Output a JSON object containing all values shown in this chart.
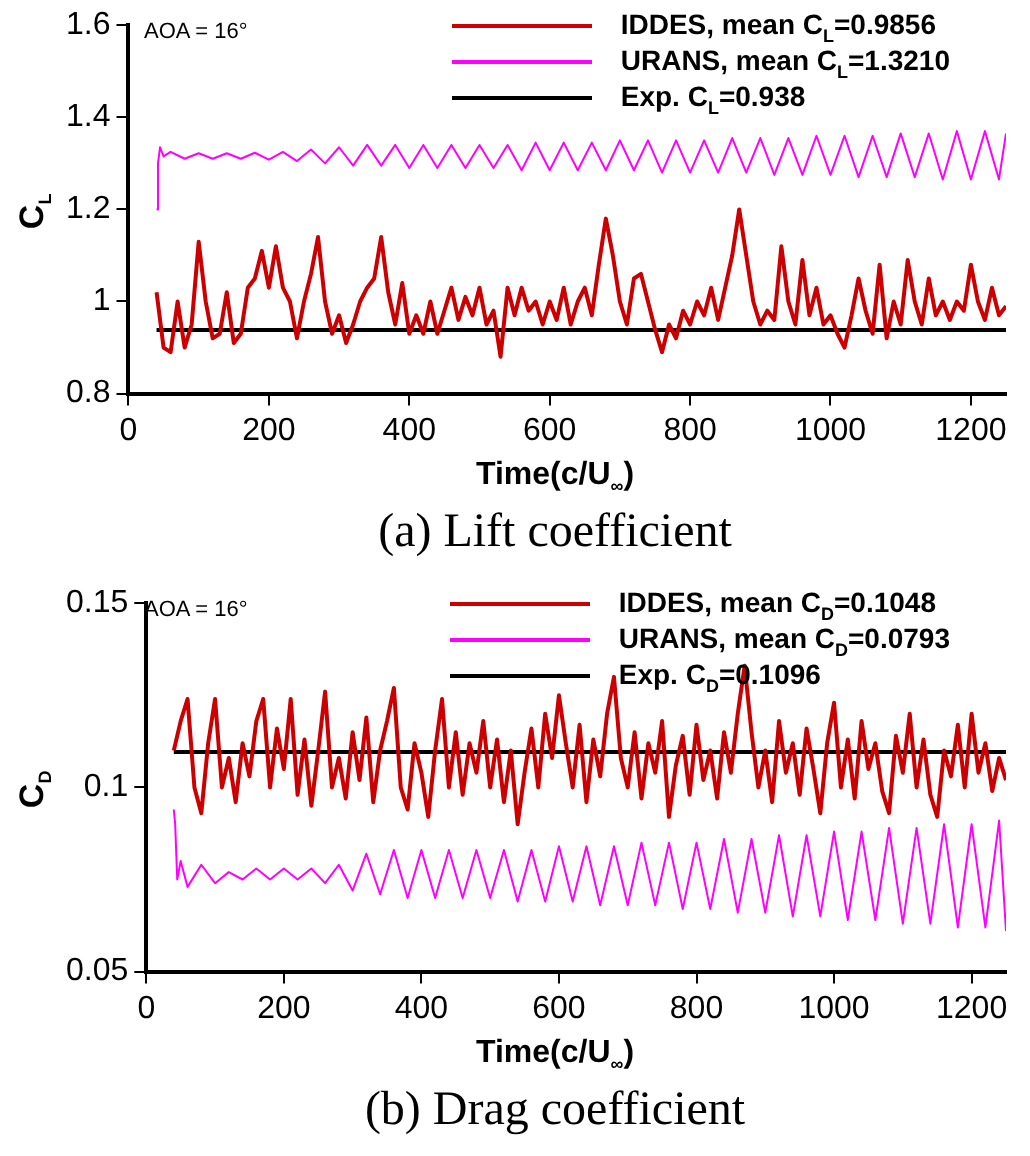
{
  "chart_data": [
    {
      "type": "line",
      "title": "(a) Lift coefficient",
      "xlabel": "Time(c/U$_{∞}$)",
      "ylabel": "C$_{L}$",
      "annotations": [
        "AOA = 16°"
      ],
      "xlim": [
        0,
        1250
      ],
      "xticks": [
        0,
        200,
        400,
        600,
        800,
        1000,
        1200
      ],
      "ylim": [
        0.8,
        1.6
      ],
      "yticks": [
        0.8,
        1,
        1.2,
        1.4,
        1.6
      ],
      "grid": false,
      "legend": "top right",
      "marker": "none",
      "line_style": "solid",
      "series": [
        {
          "name": "IDDES, mean C$_{L}$=0.9856",
          "color": "#cc0000",
          "x": [
            40,
            50,
            60,
            70,
            80,
            90,
            100,
            110,
            120,
            130,
            140,
            150,
            160,
            170,
            180,
            190,
            200,
            210,
            220,
            230,
            240,
            250,
            260,
            270,
            280,
            290,
            300,
            310,
            320,
            330,
            340,
            350,
            360,
            370,
            380,
            390,
            400,
            410,
            420,
            430,
            440,
            450,
            460,
            470,
            480,
            490,
            500,
            510,
            520,
            530,
            540,
            550,
            560,
            570,
            580,
            590,
            600,
            610,
            620,
            630,
            640,
            650,
            660,
            670,
            680,
            690,
            700,
            710,
            720,
            730,
            740,
            750,
            760,
            770,
            780,
            790,
            800,
            810,
            820,
            830,
            840,
            850,
            860,
            870,
            880,
            890,
            900,
            910,
            920,
            930,
            940,
            950,
            960,
            970,
            980,
            990,
            1000,
            1010,
            1020,
            1030,
            1040,
            1050,
            1060,
            1070,
            1080,
            1090,
            1100,
            1110,
            1120,
            1130,
            1140,
            1150,
            1160,
            1170,
            1180,
            1190,
            1200,
            1210,
            1220,
            1230,
            1240,
            1250
          ],
          "values": [
            1.02,
            0.9,
            0.89,
            1.0,
            0.9,
            0.95,
            1.13,
            1.0,
            0.92,
            0.93,
            1.02,
            0.91,
            0.93,
            1.03,
            1.05,
            1.11,
            1.03,
            1.12,
            1.03,
            1.0,
            0.92,
            1.0,
            1.06,
            1.14,
            1.0,
            0.93,
            0.97,
            0.91,
            0.95,
            1.0,
            1.03,
            1.05,
            1.14,
            1.02,
            0.95,
            1.04,
            0.93,
            0.97,
            0.93,
            1.0,
            0.93,
            0.98,
            1.03,
            0.96,
            1.01,
            0.97,
            1.03,
            0.95,
            0.98,
            0.88,
            1.03,
            0.97,
            1.03,
            0.98,
            1.0,
            0.95,
            1.0,
            0.96,
            1.03,
            0.95,
            1.0,
            1.03,
            0.97,
            1.08,
            1.18,
            1.1,
            1.0,
            0.95,
            1.05,
            1.06,
            1.0,
            0.94,
            0.89,
            0.95,
            0.92,
            0.98,
            0.95,
            1.0,
            0.97,
            1.03,
            0.96,
            1.03,
            1.1,
            1.2,
            1.1,
            1.0,
            0.95,
            0.98,
            0.96,
            1.12,
            1.0,
            0.95,
            1.09,
            0.97,
            1.03,
            0.95,
            0.97,
            0.93,
            0.9,
            0.97,
            1.05,
            0.98,
            0.93,
            1.08,
            0.92,
            1.0,
            0.95,
            1.09,
            1.0,
            0.95,
            1.05,
            0.97,
            1.0,
            0.96,
            1.0,
            0.98,
            1.08,
            1.0,
            0.96,
            1.03,
            0.97,
            0.99
          ]
        },
        {
          "name": "URANS, mean C$_{L}$=1.3210",
          "color": "#ff00ff",
          "x": [
            40,
            42,
            45,
            50,
            60,
            80,
            100,
            120,
            140,
            160,
            180,
            200,
            220,
            240,
            260,
            280,
            300,
            320,
            340,
            360,
            380,
            400,
            420,
            440,
            460,
            480,
            500,
            520,
            540,
            560,
            580,
            600,
            620,
            640,
            660,
            680,
            700,
            720,
            740,
            760,
            780,
            800,
            820,
            840,
            860,
            880,
            900,
            920,
            940,
            960,
            980,
            1000,
            1020,
            1040,
            1060,
            1080,
            1100,
            1120,
            1140,
            1160,
            1180,
            1200,
            1220,
            1240,
            1250
          ],
          "values": [
            1.2,
            1.3,
            1.335,
            1.315,
            1.325,
            1.31,
            1.322,
            1.31,
            1.322,
            1.31,
            1.323,
            1.308,
            1.325,
            1.305,
            1.33,
            1.3,
            1.335,
            1.295,
            1.34,
            1.295,
            1.34,
            1.29,
            1.34,
            1.29,
            1.34,
            1.29,
            1.34,
            1.29,
            1.34,
            1.285,
            1.345,
            1.285,
            1.345,
            1.285,
            1.345,
            1.285,
            1.35,
            1.285,
            1.35,
            1.28,
            1.35,
            1.28,
            1.35,
            1.28,
            1.355,
            1.28,
            1.355,
            1.275,
            1.355,
            1.275,
            1.36,
            1.275,
            1.36,
            1.27,
            1.36,
            1.27,
            1.365,
            1.27,
            1.365,
            1.265,
            1.37,
            1.265,
            1.37,
            1.265,
            1.365
          ]
        },
        {
          "name": "Exp. C$_{L}$=0.938",
          "color": "#000000",
          "x": [
            40,
            1250
          ],
          "values": [
            0.938,
            0.938
          ]
        }
      ]
    },
    {
      "type": "line",
      "title": "(b) Drag coefficient",
      "xlabel": "Time(c/U$_{∞}$)",
      "ylabel": "C$_{D}$",
      "annotations": [
        "AOA = 16°"
      ],
      "xlim": [
        0,
        1250
      ],
      "xticks": [
        0,
        200,
        400,
        600,
        800,
        1000,
        1200
      ],
      "ylim": [
        0.05,
        0.15
      ],
      "yticks": [
        0.05,
        0.1,
        0.15
      ],
      "grid": false,
      "legend": "top right",
      "marker": "none",
      "line_style": "solid",
      "series": [
        {
          "name": "IDDES, mean C$_{D}$=0.1048",
          "color": "#cc0000",
          "x": [
            40,
            50,
            60,
            70,
            80,
            90,
            100,
            110,
            120,
            130,
            140,
            150,
            160,
            170,
            180,
            190,
            200,
            210,
            220,
            230,
            240,
            250,
            260,
            270,
            280,
            290,
            300,
            310,
            320,
            330,
            340,
            350,
            360,
            370,
            380,
            390,
            400,
            410,
            420,
            430,
            440,
            450,
            460,
            470,
            480,
            490,
            500,
            510,
            520,
            530,
            540,
            550,
            560,
            570,
            580,
            590,
            600,
            610,
            620,
            630,
            640,
            650,
            660,
            670,
            680,
            690,
            700,
            710,
            720,
            730,
            740,
            750,
            760,
            770,
            780,
            790,
            800,
            810,
            820,
            830,
            840,
            850,
            860,
            870,
            880,
            890,
            900,
            910,
            920,
            930,
            940,
            950,
            960,
            970,
            980,
            990,
            1000,
            1010,
            1020,
            1030,
            1040,
            1050,
            1060,
            1070,
            1080,
            1090,
            1100,
            1110,
            1120,
            1130,
            1140,
            1150,
            1160,
            1170,
            1180,
            1190,
            1200,
            1210,
            1220,
            1230,
            1240,
            1250
          ],
          "values": [
            0.11,
            0.118,
            0.124,
            0.1,
            0.093,
            0.112,
            0.124,
            0.1,
            0.108,
            0.096,
            0.112,
            0.103,
            0.118,
            0.124,
            0.1,
            0.116,
            0.105,
            0.124,
            0.098,
            0.113,
            0.095,
            0.11,
            0.126,
            0.1,
            0.108,
            0.097,
            0.115,
            0.102,
            0.119,
            0.096,
            0.11,
            0.118,
            0.127,
            0.1,
            0.094,
            0.112,
            0.104,
            0.092,
            0.11,
            0.124,
            0.1,
            0.115,
            0.098,
            0.112,
            0.104,
            0.118,
            0.1,
            0.113,
            0.096,
            0.11,
            0.09,
            0.104,
            0.116,
            0.1,
            0.12,
            0.108,
            0.125,
            0.112,
            0.1,
            0.117,
            0.096,
            0.113,
            0.103,
            0.12,
            0.13,
            0.108,
            0.1,
            0.115,
            0.097,
            0.112,
            0.104,
            0.118,
            0.092,
            0.106,
            0.114,
            0.098,
            0.117,
            0.102,
            0.11,
            0.097,
            0.115,
            0.104,
            0.12,
            0.133,
            0.115,
            0.1,
            0.11,
            0.096,
            0.118,
            0.104,
            0.112,
            0.098,
            0.116,
            0.105,
            0.093,
            0.112,
            0.123,
            0.1,
            0.113,
            0.097,
            0.118,
            0.105,
            0.112,
            0.099,
            0.093,
            0.114,
            0.104,
            0.12,
            0.1,
            0.113,
            0.098,
            0.092,
            0.11,
            0.103,
            0.117,
            0.1,
            0.12,
            0.104,
            0.112,
            0.099,
            0.108,
            0.102
          ]
        },
        {
          "name": "URANS, mean C$_{D}$=0.0793",
          "color": "#ff00ff",
          "x": [
            40,
            42,
            45,
            50,
            60,
            80,
            100,
            120,
            140,
            160,
            180,
            200,
            220,
            240,
            260,
            280,
            300,
            320,
            340,
            360,
            380,
            400,
            420,
            440,
            460,
            480,
            500,
            520,
            540,
            560,
            580,
            600,
            620,
            640,
            660,
            680,
            700,
            720,
            740,
            760,
            780,
            800,
            820,
            840,
            860,
            880,
            900,
            920,
            940,
            960,
            980,
            1000,
            1020,
            1040,
            1060,
            1080,
            1100,
            1120,
            1140,
            1160,
            1180,
            1200,
            1220,
            1240,
            1250
          ],
          "values": [
            0.094,
            0.09,
            0.075,
            0.08,
            0.073,
            0.079,
            0.074,
            0.077,
            0.075,
            0.078,
            0.075,
            0.078,
            0.075,
            0.078,
            0.074,
            0.079,
            0.072,
            0.082,
            0.071,
            0.083,
            0.07,
            0.083,
            0.07,
            0.083,
            0.07,
            0.083,
            0.07,
            0.083,
            0.069,
            0.083,
            0.069,
            0.084,
            0.069,
            0.084,
            0.068,
            0.084,
            0.068,
            0.085,
            0.068,
            0.085,
            0.067,
            0.085,
            0.067,
            0.086,
            0.066,
            0.086,
            0.066,
            0.087,
            0.065,
            0.087,
            0.065,
            0.088,
            0.064,
            0.088,
            0.064,
            0.089,
            0.063,
            0.089,
            0.063,
            0.09,
            0.062,
            0.09,
            0.062,
            0.091,
            0.061
          ]
        },
        {
          "name": "Exp. C$_{D}$=0.1096",
          "color": "#000000",
          "x": [
            40,
            1250
          ],
          "values": [
            0.1096,
            0.1096
          ]
        }
      ]
    }
  ]
}
